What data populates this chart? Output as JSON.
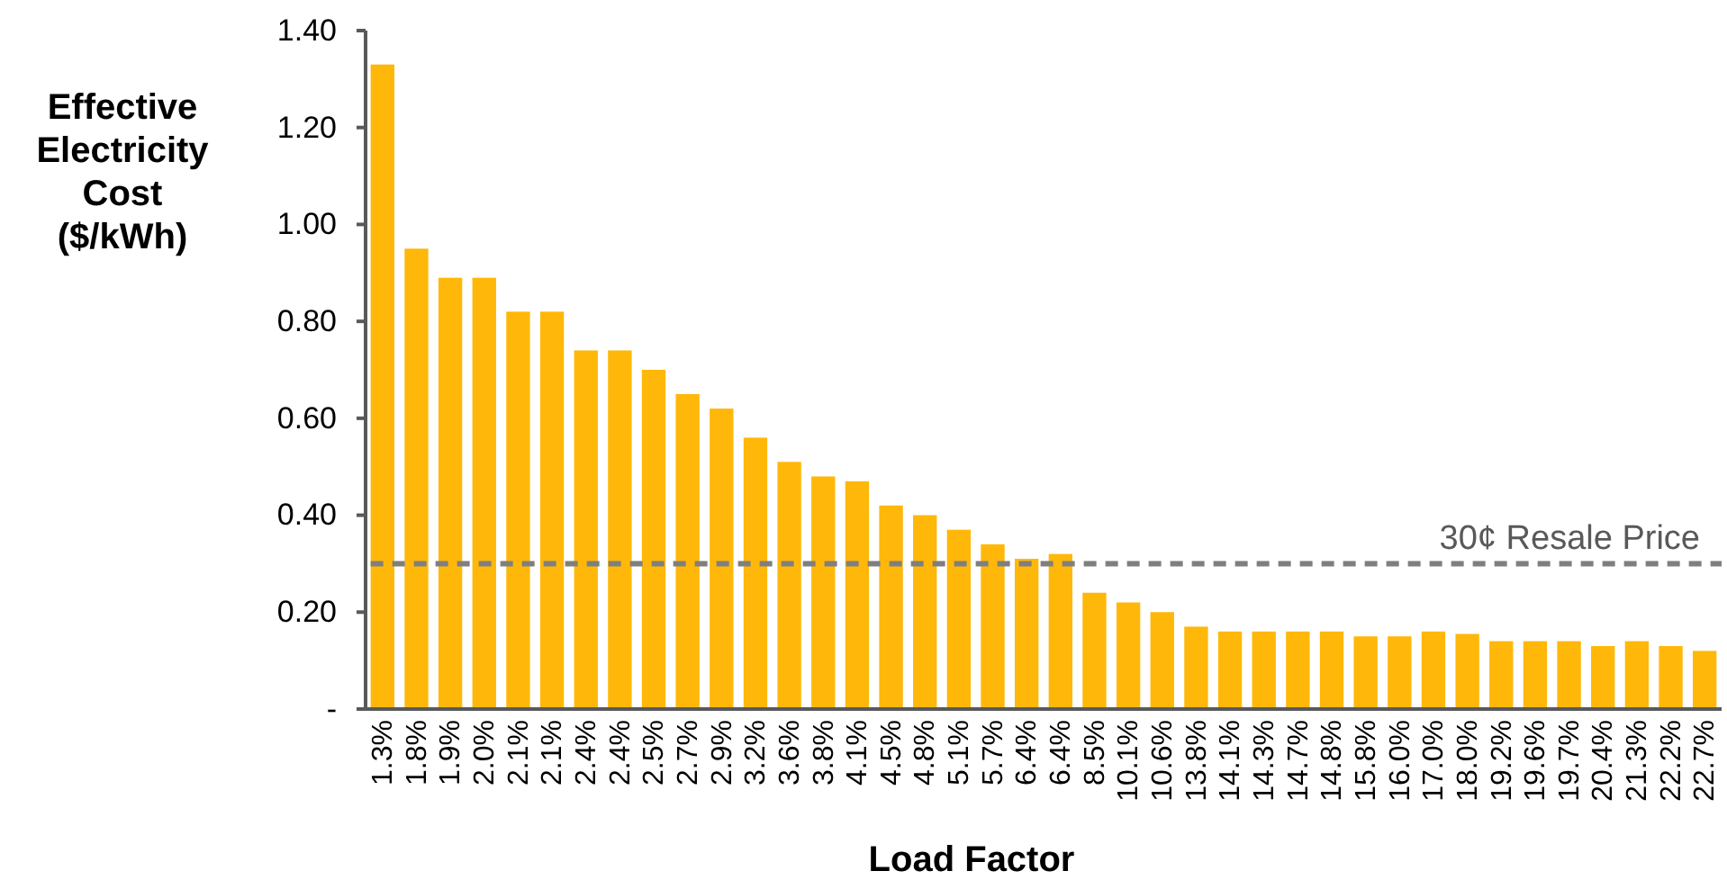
{
  "chart_data": {
    "type": "bar",
    "xlabel": "Load Factor",
    "ylabel": "Effective Electricity Cost ($/kWh)",
    "categories": [
      "1.3%",
      "1.8%",
      "1.9%",
      "2.0%",
      "2.1%",
      "2.1%",
      "2.4%",
      "2.4%",
      "2.5%",
      "2.7%",
      "2.9%",
      "3.2%",
      "3.6%",
      "3.8%",
      "4.1%",
      "4.5%",
      "4.8%",
      "5.1%",
      "5.7%",
      "6.4%",
      "6.4%",
      "8.5%",
      "10.1%",
      "10.6%",
      "13.8%",
      "14.1%",
      "14.3%",
      "14.7%",
      "14.8%",
      "15.8%",
      "16.0%",
      "17.0%",
      "18.0%",
      "19.2%",
      "19.6%",
      "19.7%",
      "20.4%",
      "21.3%",
      "22.2%",
      "22.7%"
    ],
    "values": [
      1.33,
      0.95,
      0.89,
      0.89,
      0.82,
      0.82,
      0.74,
      0.74,
      0.7,
      0.65,
      0.62,
      0.56,
      0.51,
      0.48,
      0.47,
      0.42,
      0.4,
      0.37,
      0.34,
      0.31,
      0.32,
      0.24,
      0.22,
      0.2,
      0.17,
      0.16,
      0.16,
      0.16,
      0.16,
      0.15,
      0.15,
      0.16,
      0.155,
      0.14,
      0.14,
      0.14,
      0.13,
      0.14,
      0.13,
      0.12
    ],
    "color": "#ffb809",
    "ylim": [
      0,
      1.4
    ],
    "yticks": [
      {
        "value": 0,
        "label": "-"
      },
      {
        "value": 0.2,
        "label": "0.20"
      },
      {
        "value": 0.4,
        "label": "0.40"
      },
      {
        "value": 0.6,
        "label": "0.60"
      },
      {
        "value": 0.8,
        "label": "0.80"
      },
      {
        "value": 1.0,
        "label": "1.00"
      },
      {
        "value": 1.2,
        "label": "1.20"
      },
      {
        "value": 1.4,
        "label": "1.40"
      }
    ],
    "ref_lines": [
      {
        "axis": "y",
        "value": 0.3,
        "label": "30¢ Resale Price",
        "color": "#7f7f7f",
        "line_style": "dashed"
      }
    ],
    "grid": false
  }
}
